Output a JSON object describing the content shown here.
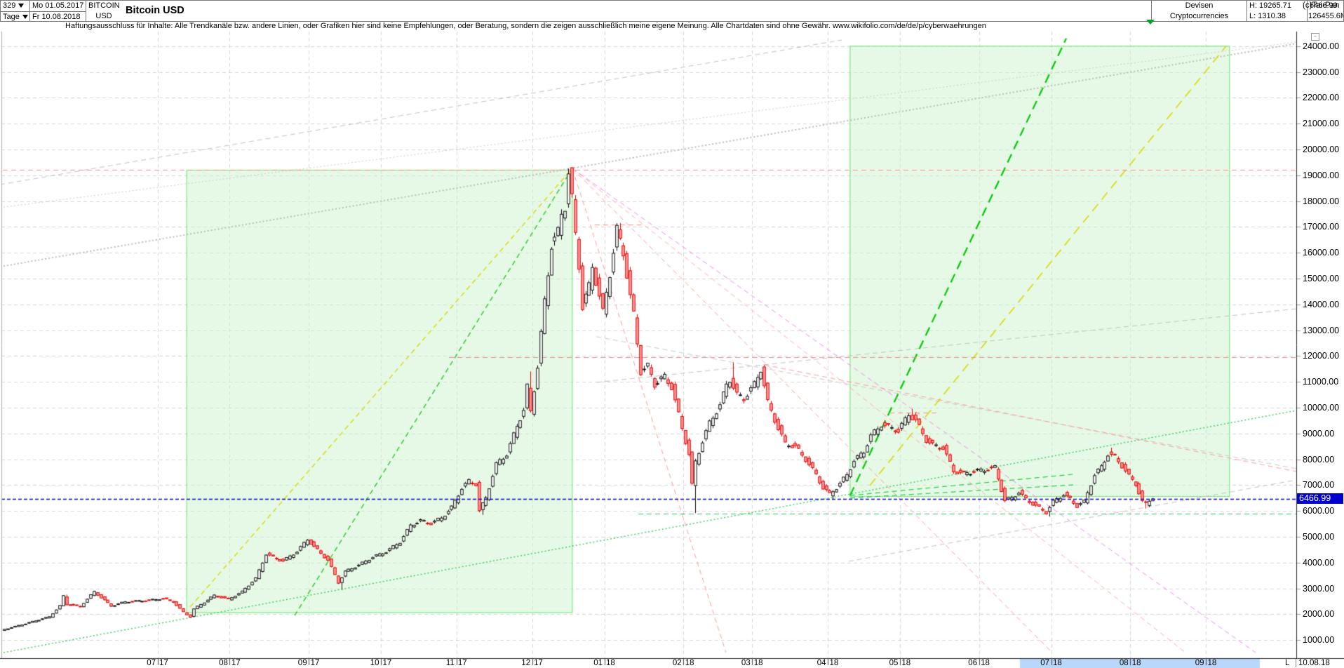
{
  "header": {
    "bars_count": "329",
    "period": "Tage",
    "date_from": "Mo 01.05.2017",
    "date_to": "Fr 10.08.2018",
    "symbol_line1": "BITCOIN",
    "symbol_line2": "USD",
    "title": "Bitcoin USD",
    "category_line1": "Devisen",
    "category_line2": "Cryptocurrencies",
    "high_label": "H: 19265.71",
    "low_label": "L: 1310.38",
    "last_value": "6466.99",
    "volume_value": "126455.6M"
  },
  "disclaimer": "Haftungsausschluss für Inhalte: Alle Trendkanäle bzw. andere Linien, oder Grafiken hier sind keine Empfehlungen, oder Beratung, sondern die zeigen ausschließlich meine eigene Meinung. Alle Chartdaten sind ohne Gewähr.  www.wikifolio.com/de/de/p/cyberwaehrungen",
  "copyright": "(c)Tai-Pan",
  "minimize_glyph": "−",
  "bottom_right": {
    "l_label": "L",
    "date": "10.08.18"
  },
  "chart_data": {
    "type": "candlestick",
    "title": "Bitcoin USD",
    "period": "daily (Tage), weekdays only",
    "visible_bars": 329,
    "date_range": [
      "Mo 01.05.2017",
      "Fr 10.08.2018"
    ],
    "last_price": 6466.99,
    "last_price_label": "6466.99",
    "range_high": 19265.71,
    "range_low": 1310.38,
    "grid": true,
    "y_axis": {
      "min": 1000,
      "max": 24000,
      "step": 1000,
      "labels": [
        "24000.00",
        "23000.00",
        "22000.00",
        "21000.00",
        "20000.00",
        "19000.00",
        "18000.00",
        "17000.00",
        "16000.00",
        "15000.00",
        "14000.00",
        "13000.00",
        "12000.00",
        "11000.00",
        "10000.00",
        "9000.00",
        "8000.00",
        "7000.00",
        "6000.00",
        "5000.00",
        "4000.00",
        "3000.00",
        "2000.00",
        "1000.00"
      ]
    },
    "x_axis": {
      "ticks": [
        {
          "label": "07/17",
          "bar": 45
        },
        {
          "label": "08/17",
          "bar": 66
        },
        {
          "label": "09/17",
          "bar": 89
        },
        {
          "label": "10/17",
          "bar": 110
        },
        {
          "label": "11/17",
          "bar": 132
        },
        {
          "label": "12/17",
          "bar": 154
        },
        {
          "label": "01/18",
          "bar": 175
        },
        {
          "label": "02/18",
          "bar": 198
        },
        {
          "label": "03/18",
          "bar": 218
        },
        {
          "label": "04/18",
          "bar": 240
        },
        {
          "label": "05/18",
          "bar": 261
        },
        {
          "label": "06/18",
          "bar": 284
        },
        {
          "label": "07/18",
          "bar": 305
        },
        {
          "label": "08/18",
          "bar": 328
        },
        {
          "label": "09/18",
          "bar": 350
        }
      ]
    },
    "highlight_strip": {
      "from_bar": 295.9,
      "to_bar": 365.7
    },
    "price_path_anchors": [
      [
        0,
        1380
      ],
      [
        5,
        1560
      ],
      [
        10,
        1750
      ],
      [
        14,
        1900
      ],
      [
        17,
        2320
      ],
      [
        18,
        2700
      ],
      [
        19,
        2380
      ],
      [
        23,
        2310
      ],
      [
        27,
        2870
      ],
      [
        29,
        2650
      ],
      [
        32,
        2320
      ],
      [
        36,
        2480
      ],
      [
        43,
        2540
      ],
      [
        47,
        2610
      ],
      [
        50,
        2480
      ],
      [
        53,
        2080
      ],
      [
        55,
        1900
      ],
      [
        56,
        2200
      ],
      [
        62,
        2730
      ],
      [
        66,
        2580
      ],
      [
        70,
        2870
      ],
      [
        74,
        3380
      ],
      [
        77,
        4330
      ],
      [
        80,
        4150
      ],
      [
        82,
        4060
      ],
      [
        86,
        4430
      ],
      [
        89,
        4900
      ],
      [
        91,
        4620
      ],
      [
        95,
        4100
      ],
      [
        98,
        3230
      ],
      [
        100,
        3650
      ],
      [
        104,
        3900
      ],
      [
        108,
        4210
      ],
      [
        112,
        4420
      ],
      [
        116,
        4800
      ],
      [
        119,
        5440
      ],
      [
        122,
        5620
      ],
      [
        125,
        5520
      ],
      [
        128,
        5730
      ],
      [
        131,
        6130
      ],
      [
        134,
        6890
      ],
      [
        136,
        7150
      ],
      [
        138,
        7050
      ],
      [
        139,
        6000
      ],
      [
        141,
        6500
      ],
      [
        144,
        7800
      ],
      [
        147,
        8200
      ],
      [
        150,
        9300
      ],
      [
        152,
        9900
      ],
      [
        153,
        10800
      ],
      [
        154,
        9850
      ],
      [
        156,
        11600
      ],
      [
        158,
        14100
      ],
      [
        160,
        16300
      ],
      [
        162,
        16800
      ],
      [
        163,
        17500
      ],
      [
        164,
        17800
      ],
      [
        165,
        19100
      ],
      [
        166,
        18100
      ],
      [
        167,
        16700
      ],
      [
        168,
        15500
      ],
      [
        169,
        13900
      ],
      [
        171,
        14700
      ],
      [
        172,
        15500
      ],
      [
        174,
        14300
      ],
      [
        175,
        13700
      ],
      [
        177,
        15200
      ],
      [
        179,
        16900
      ],
      [
        181,
        16000
      ],
      [
        183,
        14300
      ],
      [
        184,
        13600
      ],
      [
        186,
        11400
      ],
      [
        188,
        11600
      ],
      [
        190,
        10900
      ],
      [
        193,
        11200
      ],
      [
        195,
        10800
      ],
      [
        198,
        9200
      ],
      [
        200,
        8200
      ],
      [
        201,
        7000
      ],
      [
        202,
        7900
      ],
      [
        204,
        8700
      ],
      [
        206,
        9400
      ],
      [
        209,
        10100
      ],
      [
        211,
        10900
      ],
      [
        212,
        11100
      ],
      [
        214,
        10500
      ],
      [
        216,
        10350
      ],
      [
        219,
        10900
      ],
      [
        221,
        11500
      ],
      [
        223,
        10200
      ],
      [
        226,
        9200
      ],
      [
        228,
        8600
      ],
      [
        231,
        8500
      ],
      [
        234,
        8000
      ],
      [
        237,
        7400
      ],
      [
        239,
        6900
      ],
      [
        241,
        6650
      ],
      [
        243,
        6900
      ],
      [
        246,
        7400
      ],
      [
        248,
        7950
      ],
      [
        251,
        8300
      ],
      [
        253,
        8900
      ],
      [
        256,
        9350
      ],
      [
        258,
        9250
      ],
      [
        261,
        9100
      ],
      [
        264,
        9750
      ],
      [
        266,
        9500
      ],
      [
        269,
        8750
      ],
      [
        271,
        8550
      ],
      [
        274,
        8450
      ],
      [
        277,
        7550
      ],
      [
        280,
        7450
      ],
      [
        284,
        7550
      ],
      [
        287,
        7620
      ],
      [
        289,
        7680
      ],
      [
        292,
        6400
      ],
      [
        294,
        6500
      ],
      [
        296,
        6730
      ],
      [
        298,
        6450
      ],
      [
        301,
        6200
      ],
      [
        304,
        5950
      ],
      [
        306,
        6350
      ],
      [
        309,
        6650
      ],
      [
        311,
        6450
      ],
      [
        313,
        6200
      ],
      [
        315,
        6350
      ],
      [
        318,
        7400
      ],
      [
        320,
        7700
      ],
      [
        322,
        8200
      ],
      [
        324,
        8100
      ],
      [
        326,
        7750
      ],
      [
        328,
        7350
      ],
      [
        330,
        7050
      ],
      [
        332,
        6350
      ],
      [
        333,
        6280
      ],
      [
        334,
        6420
      ],
      [
        335,
        6467
      ]
    ],
    "bar_extremes": [
      [
        18,
        "high",
        2760
      ],
      [
        98,
        "low",
        2950
      ],
      [
        139,
        "low",
        5850
      ],
      [
        153,
        "high",
        11400
      ],
      [
        165,
        "high",
        19265
      ],
      [
        179,
        "high",
        17150
      ],
      [
        201,
        "low",
        5920
      ],
      [
        212,
        "high",
        11750
      ],
      [
        221,
        "high",
        11650
      ],
      [
        241,
        "low",
        6430
      ],
      [
        264,
        "high",
        9950
      ],
      [
        304,
        "low",
        5780
      ],
      [
        322,
        "high",
        8450
      ],
      [
        332,
        "low",
        6100
      ]
    ],
    "overlays": {
      "boxes": [
        {
          "x1_bar": 53.5,
          "price_top": 19200,
          "x2_bar": 165.7,
          "price_bottom": 2060
        },
        {
          "x1_bar": 246.5,
          "price_top": 24000,
          "x2_bar": 356.9,
          "price_bottom": 6560
        }
      ],
      "hlines": [
        {
          "price": 19200,
          "b1": 0,
          "b2": 376.3,
          "color": "#ff8a8a",
          "style": "dash"
        },
        {
          "price": 11950,
          "b1": 129.8,
          "b2": 376.3,
          "color": "#ff8a8a",
          "style": "dash"
        },
        {
          "price": 17100,
          "b1": 172.2,
          "b2": 186.5,
          "color": "#ff8a8a",
          "style": "dash"
        },
        {
          "price": 9810,
          "b1": 258,
          "b2": 272.7,
          "color": "#ff8a8a",
          "style": "dash"
        },
        {
          "price": 5900,
          "b1": 184.9,
          "b2": 376.3,
          "color": "#22cc44",
          "style": "dash"
        }
      ],
      "trendlines": [
        {
          "b1": -0.8,
          "p1": 18640,
          "b2": 244.1,
          "p2": 24240,
          "color": "#c0c0c0",
          "style": "dash",
          "w": 1
        },
        {
          "b1": -0.8,
          "p1": 15460,
          "b2": 376.3,
          "p2": 24100,
          "color": "#bbbbbb",
          "style": "dot",
          "w": 2
        },
        {
          "b1": -0.8,
          "p1": 17750,
          "b2": 376.3,
          "p2": 24160,
          "color": "#c8c8c8",
          "style": "dot",
          "w": 1
        },
        {
          "b1": 246.1,
          "p1": 4050,
          "b2": 376.3,
          "p2": 7200,
          "color": "#c0c0c0",
          "style": "dash",
          "w": 1
        },
        {
          "b1": 172.7,
          "p1": 10980,
          "b2": 376.3,
          "p2": 13830,
          "color": "#c0c0c0",
          "style": "dash",
          "w": 1
        },
        {
          "b1": 172.7,
          "p1": 12750,
          "b2": 376.3,
          "p2": 7640,
          "color": "#c8c8c8",
          "style": "dash",
          "w": 1
        },
        {
          "b1": 54.5,
          "p1": 2280,
          "b2": 165.7,
          "p2": 19265,
          "color": "#d9d900",
          "style": "dash",
          "w": 1.4
        },
        {
          "b1": 84.9,
          "p1": 1950,
          "b2": 165.7,
          "p2": 19265,
          "color": "#22cc22",
          "style": "dash",
          "w": 1.4
        },
        {
          "b1": 246.5,
          "p1": 6600,
          "b2": 309.4,
          "p2": 24300,
          "color": "#00c800",
          "style": "longdash",
          "w": 2.2
        },
        {
          "b1": 252.2,
          "p1": 6980,
          "b2": 355.9,
          "p2": 24000,
          "color": "#d9d900",
          "style": "longdash",
          "w": 1.6
        },
        {
          "b1": -0.8,
          "p1": 490,
          "b2": 376.3,
          "p2": 9890,
          "color": "#33cc55",
          "style": "dot",
          "w": 1.4
        },
        {
          "b1": 246.5,
          "p1": 6600,
          "b2": 311.4,
          "p2": 7420,
          "color": "#22cc44",
          "style": "dash",
          "w": 1.2
        },
        {
          "b1": 246.5,
          "p1": 6500,
          "b2": 311.4,
          "p2": 7010,
          "color": "#22cc44",
          "style": "dash",
          "w": 1.2
        },
        {
          "b1": 165.7,
          "p1": 19265,
          "b2": 210.4,
          "p2": 515,
          "color": "#ff9a9a",
          "style": "dash",
          "w": 1
        },
        {
          "b1": 165.7,
          "p1": 19265,
          "b2": 305.3,
          "p2": 515,
          "color": "#ff9a9a",
          "style": "dash",
          "w": 1
        },
        {
          "b1": 165.7,
          "p1": 19265,
          "b2": 344.1,
          "p2": 515,
          "color": "#ffaaaa",
          "style": "dash",
          "w": 1
        },
        {
          "b1": 165.7,
          "p1": 19265,
          "b2": 364.5,
          "p2": 515,
          "color": "#ee88ee",
          "style": "dash",
          "w": 1
        },
        {
          "b1": 221.6,
          "p1": 11660,
          "b2": 376.3,
          "p2": 7530,
          "color": "#ff9a9a",
          "style": "dash",
          "w": 1
        }
      ]
    },
    "colors": {
      "up_fill": "#ffffff",
      "up_stroke": "#111111",
      "down_fill": "#ff9b9b",
      "down_stroke": "#e60000",
      "grid": "#d4d4d4",
      "box_fill": "rgba(205,243,205,0.5)",
      "box_stroke": "#7de87d",
      "last_price_line": "#0000cc",
      "highlight_strip": "#b9d7fb",
      "accent_marker": "#00a020"
    }
  }
}
